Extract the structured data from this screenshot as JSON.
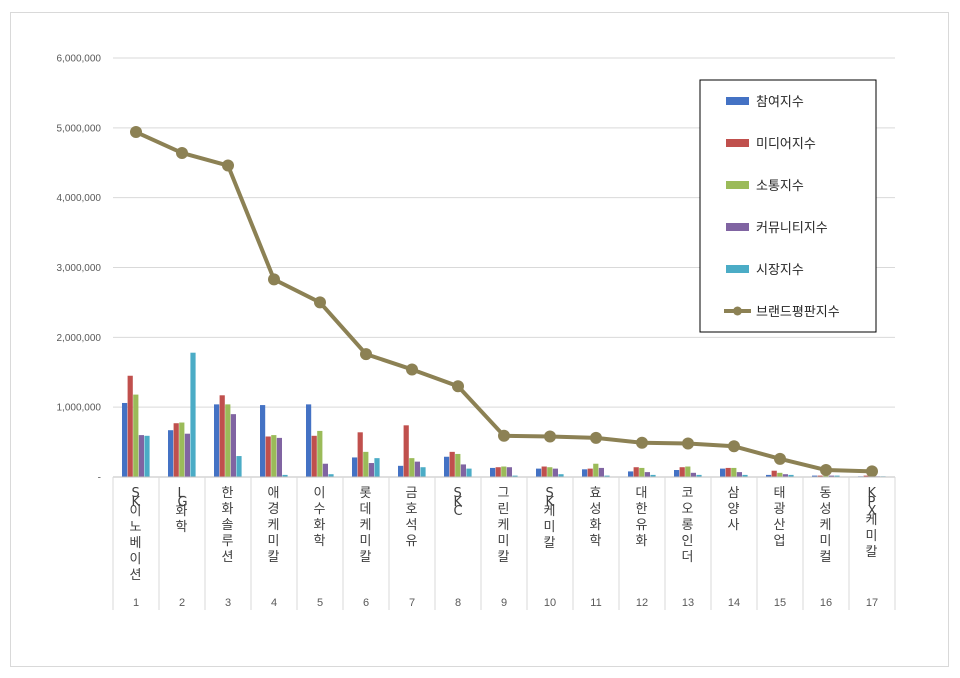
{
  "chart_data": {
    "type": "bar",
    "title": "",
    "xlabel": "",
    "ylabel": "",
    "ylim": [
      0,
      6000000
    ],
    "yticks": [
      "-",
      "1,000,000",
      "2,000,000",
      "3,000,000",
      "4,000,000",
      "5,000,000",
      "6,000,000"
    ],
    "grid": true,
    "legend_position": "top-right",
    "ranks": [
      "1",
      "2",
      "3",
      "4",
      "5",
      "6",
      "7",
      "8",
      "9",
      "10",
      "11",
      "12",
      "13",
      "14",
      "15",
      "16",
      "17"
    ],
    "categories": [
      "SK이노베이션",
      "LG화학",
      "한화솔루션",
      "애경케미칼",
      "이수화학",
      "롯데케미칼",
      "금호석유",
      "SKC",
      "그린케미칼",
      "SK케미칼",
      "효성화학",
      "대한유화",
      "코오롱인더",
      "삼양사",
      "태광산업",
      "동성케미컬",
      "KPX케미칼"
    ],
    "series": [
      {
        "name": "참여지수",
        "type": "bar",
        "color": "#4472c4",
        "values": [
          1060000,
          670000,
          1040000,
          1030000,
          1040000,
          280000,
          160000,
          290000,
          130000,
          120000,
          110000,
          80000,
          100000,
          120000,
          30000,
          20000,
          10000
        ]
      },
      {
        "name": "미디어지수",
        "type": "bar",
        "color": "#c0504d",
        "values": [
          1450000,
          770000,
          1170000,
          580000,
          590000,
          640000,
          740000,
          360000,
          140000,
          150000,
          120000,
          140000,
          140000,
          130000,
          90000,
          20000,
          20000
        ]
      },
      {
        "name": "소통지수",
        "type": "bar",
        "color": "#9bbb59",
        "values": [
          1180000,
          780000,
          1040000,
          600000,
          660000,
          360000,
          270000,
          330000,
          150000,
          140000,
          190000,
          130000,
          150000,
          130000,
          60000,
          20000,
          20000
        ]
      },
      {
        "name": "커뮤니티지수",
        "type": "bar",
        "color": "#8064a2",
        "values": [
          600000,
          620000,
          900000,
          560000,
          190000,
          200000,
          220000,
          180000,
          140000,
          120000,
          130000,
          70000,
          60000,
          70000,
          40000,
          20000,
          10000
        ]
      },
      {
        "name": "시장지수",
        "type": "bar",
        "color": "#4bacc6",
        "values": [
          590000,
          1780000,
          300000,
          30000,
          40000,
          270000,
          140000,
          120000,
          20000,
          40000,
          20000,
          30000,
          30000,
          30000,
          30000,
          20000,
          10000
        ]
      },
      {
        "name": "브랜드평판지수",
        "type": "line",
        "color": "#8c8154",
        "values": [
          4940000,
          4640000,
          4460000,
          2830000,
          2500000,
          1760000,
          1540000,
          1300000,
          590000,
          580000,
          560000,
          490000,
          480000,
          440000,
          260000,
          100000,
          80000
        ]
      }
    ]
  }
}
